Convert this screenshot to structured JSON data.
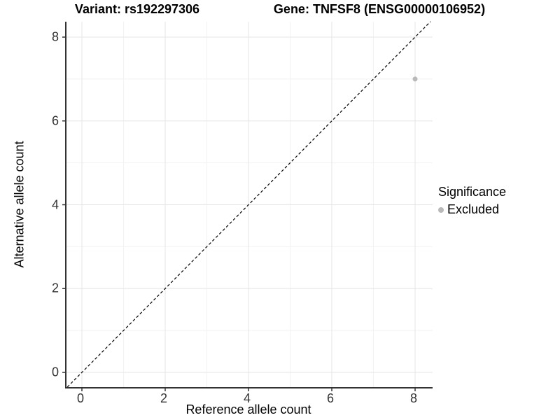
{
  "chart_data": {
    "type": "scatter",
    "title_left": "Variant: rs192297306",
    "title_right": "Gene: TNFSF8 (ENSG00000106952)",
    "xlabel": "Reference allele count",
    "ylabel": "Alternative allele count",
    "xlim": [
      -0.37,
      8.4
    ],
    "ylim": [
      -0.35,
      8.37
    ],
    "x_ticks": [
      0,
      2,
      4,
      6,
      8
    ],
    "y_ticks": [
      0,
      2,
      4,
      6,
      8
    ],
    "x_minor_ticks": [
      1,
      3,
      5,
      7
    ],
    "y_minor_ticks": [
      1,
      3,
      5,
      7
    ],
    "grid": true,
    "points": [
      {
        "x": 8,
        "y": 7,
        "series": "Excluded",
        "color": "#b9b9b9"
      }
    ],
    "reference_line": {
      "type": "identity",
      "style": "dashed",
      "color": "#000000"
    },
    "legend": {
      "title": "Significance",
      "position": "right",
      "entries": [
        {
          "label": "Excluded",
          "color": "#b9b9b9"
        }
      ]
    },
    "colors": {
      "grid_major": "#e5e5e5",
      "grid_minor": "#f2f2f2",
      "axis_line": "#333333",
      "tick_mark": "#333333",
      "tick_text": "#333333"
    }
  }
}
